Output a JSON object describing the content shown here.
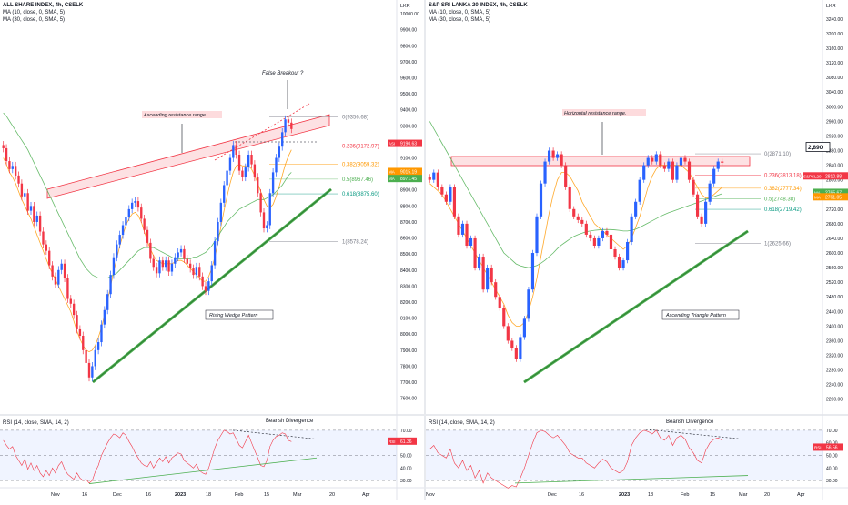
{
  "header": {
    "corner_label": "LKR",
    "corner_label_left": "LKR",
    "corner_label_right": "LKR"
  },
  "chart_data": [
    {
      "type": "candlestick",
      "title": "ALL SHARE INDEX, 4h, CSELK",
      "indicators": [
        "MA (10, close, 0, SMA, 5)",
        "MA (30, close, 0, SMA, 5)"
      ],
      "y_axis": {
        "ticks": [
          10000,
          9900,
          9800,
          9700,
          9600,
          9500,
          9400,
          9300,
          9200,
          9100,
          9000,
          8900,
          8800,
          8700,
          8600,
          8500,
          8400,
          8300,
          8200,
          8100,
          8000,
          7900,
          7800,
          7700,
          7600
        ],
        "tick_labels": [
          "10000.00",
          "9900.00",
          "9800.00",
          "9700.00",
          "9600.00",
          "9500.00",
          "9400.00",
          "9300.00",
          "9200.00",
          "9100.00",
          "9000.00",
          "8900.00",
          "8800.00",
          "8700.00",
          "8600.00",
          "8500.00",
          "8400.00",
          "8300.00",
          "8200.00",
          "8100.00",
          "8000.00",
          "7900.00",
          "7800.00",
          "7700.00",
          "7600.00"
        ],
        "range": [
          7530,
          10040
        ]
      },
      "x_axis": {
        "tick_labels": [
          "Nov",
          "16",
          "Dec",
          "16",
          "2023",
          "18",
          "Feb",
          "15",
          "Mar",
          "20",
          "Apr"
        ]
      },
      "series": [
        {
          "name": "ALL SHARE INDEX",
          "close": [
            9160,
            9080,
            9030,
            9050,
            8990,
            8940,
            8860,
            8880,
            8770,
            8800,
            8700,
            8740,
            8640,
            8560,
            8520,
            8430,
            8360,
            8310,
            8400,
            8440,
            8350,
            8220,
            8190,
            8120,
            8030,
            7990,
            7900,
            7820,
            7730,
            7800,
            7900,
            7950,
            8060,
            8150,
            8250,
            8370,
            8480,
            8560,
            8620,
            8680,
            8730,
            8780,
            8820,
            8830,
            8790,
            8720,
            8650,
            8570,
            8470,
            8420,
            8380,
            8460,
            8420,
            8460,
            8390,
            8440,
            8480,
            8510,
            8530,
            8470,
            8440,
            8410,
            8370,
            8420,
            8360,
            8300,
            8270,
            8330,
            8430,
            8580,
            8700,
            8820,
            8930,
            9020,
            9100,
            9180,
            9120,
            9020,
            8980,
            9040,
            9120,
            9060,
            8980,
            8880,
            8760,
            8660,
            8680,
            8880,
            9010,
            9100,
            9170,
            9260,
            9340,
            9320,
            9280
          ]
        },
        {
          "name": "MA (10)",
          "values": [
            9100,
            9060,
            9010,
            8980,
            8940,
            8890,
            8840,
            8800,
            8760,
            8720,
            8670,
            8620,
            8570,
            8520,
            8470,
            8420,
            8380,
            8340,
            8300,
            8260,
            8220,
            8180,
            8140,
            8080,
            8020,
            7970,
            7930,
            7900,
            7890,
            7900,
            7930,
            7980,
            8040,
            8120,
            8210,
            8300,
            8390,
            8470,
            8550,
            8620,
            8680,
            8720,
            8750,
            8760,
            8740,
            8700,
            8640,
            8580,
            8530,
            8490,
            8460,
            8450,
            8440,
            8440,
            8440,
            8440,
            8450,
            8460,
            8460,
            8450,
            8430,
            8410,
            8390,
            8370,
            8350,
            8330,
            8330,
            8360,
            8410,
            8480,
            8570,
            8670,
            8770,
            8860,
            8940,
            9010,
            9050,
            9060,
            9050,
            9050,
            9050,
            9030,
            8990,
            8940,
            8890,
            8840,
            8800,
            8790,
            8810,
            8860,
            8920,
            8990,
            9060,
            9110,
            9150
          ]
        },
        {
          "name": "MA (30)",
          "values": [
            9380,
            9360,
            9330,
            9300,
            9270,
            9240,
            9210,
            9180,
            9150,
            9110,
            9070,
            9030,
            8990,
            8950,
            8910,
            8870,
            8830,
            8790,
            8750,
            8710,
            8670,
            8630,
            8590,
            8550,
            8510,
            8470,
            8440,
            8410,
            8390,
            8370,
            8360,
            8350,
            8350,
            8350,
            8350,
            8360,
            8370,
            8380,
            8400,
            8420,
            8440,
            8460,
            8480,
            8500,
            8520,
            8530,
            8540,
            8540,
            8540,
            8540,
            8530,
            8520,
            8510,
            8500,
            8490,
            8480,
            8470,
            8470,
            8470,
            8470,
            8470,
            8470,
            8480,
            8480,
            8490,
            8500,
            8510,
            8530,
            8550,
            8580,
            8610,
            8640,
            8670,
            8700,
            8720,
            8740,
            8760,
            8780,
            8790,
            8800,
            8810,
            8820,
            8830,
            8840,
            8840,
            8840,
            8850,
            8860,
            8870,
            8890,
            8910,
            8930,
            8960,
            8990,
            9010
          ]
        }
      ],
      "fibonacci": [
        {
          "level": "0",
          "value": 9356.68,
          "label": "0(9356.68)"
        },
        {
          "level": "0.236",
          "value": 9172.97,
          "label": "0.236(9172.97)"
        },
        {
          "level": "0.382",
          "value": 9059.32,
          "label": "0.382(9059.32)"
        },
        {
          "level": "0.5",
          "value": 8967.46,
          "label": "0.5(8967.46)"
        },
        {
          "level": "0.618",
          "value": 8875.6,
          "label": "0.618(8875.60)"
        },
        {
          "level": "1",
          "value": 8578.24,
          "label": "1(8578.24)"
        }
      ],
      "price_tags": [
        {
          "tag": "ASI",
          "value": "9190.63",
          "color": "#f23645"
        },
        {
          "tag": "MA",
          "value": "9015.19",
          "color": "#ff9800"
        },
        {
          "tag": "MA",
          "value": "8971.45",
          "color": "#4caf50"
        }
      ],
      "annotations": [
        "Ascending resistance range.",
        "False Breakout ?",
        "Rising Wedge Pattern"
      ],
      "rsi": {
        "title": "RSI (14, close, SMA, 14, 2)",
        "ticks": [
          "70.00",
          "60.00",
          "50.00",
          "40.00",
          "30.00"
        ],
        "last": "61.36",
        "annotation": "Bearish Divergence",
        "values": [
          62,
          58,
          55,
          57,
          50,
          46,
          42,
          47,
          39,
          44,
          38,
          42,
          36,
          33,
          38,
          34,
          40,
          36,
          42,
          45,
          39,
          35,
          33,
          31,
          36,
          32,
          30,
          31,
          28,
          30,
          37,
          42,
          50,
          55,
          60,
          64,
          67,
          66,
          64,
          68,
          66,
          61,
          57,
          52,
          48,
          44,
          42,
          41,
          45,
          40,
          44,
          48,
          45,
          49,
          44,
          48,
          50,
          52,
          51,
          46,
          44,
          42,
          40,
          43,
          38,
          36,
          35,
          40,
          48,
          56,
          62,
          66,
          70,
          69,
          67,
          68,
          63,
          58,
          56,
          61,
          66,
          60,
          54,
          48,
          42,
          41,
          46,
          57,
          62,
          65,
          66,
          68,
          67,
          62,
          61
        ]
      }
    },
    {
      "type": "candlestick",
      "title": "S&P SRI LANKA 20 INDEX, 4h, CSELK",
      "indicators": [
        "MA (10, close, 0, SMA, 5)",
        "MA (30, close, 0, SMA, 5)"
      ],
      "y_axis": {
        "ticks": [
          3240,
          3200,
          3160,
          3120,
          3080,
          3040,
          3000,
          2960,
          2920,
          2880,
          2840,
          2800,
          2760,
          2720,
          2680,
          2640,
          2600,
          2560,
          2520,
          2480,
          2440,
          2400,
          2360,
          2320,
          2280,
          2240,
          2200
        ],
        "tick_labels": [
          "3240.00",
          "3200.00",
          "3160.00",
          "3120.00",
          "3080.00",
          "3040.00",
          "3000.00",
          "2960.00",
          "2920.00",
          "2880.00",
          "2840.00",
          "2800.00",
          "2760.00",
          "2720.00",
          "2680.00",
          "2640.00",
          "2600.00",
          "2560.00",
          "2520.00",
          "2480.00",
          "2440.00",
          "2400.00",
          "2360.00",
          "2320.00",
          "2280.00",
          "2240.00",
          "2200.00"
        ],
        "range": [
          2172,
          3272
        ]
      },
      "x_axis": {
        "tick_labels": [
          "Nov",
          "Dec",
          "16",
          "2023",
          "18",
          "Feb",
          "15",
          "Mar",
          "20",
          "Apr"
        ]
      },
      "series": [
        {
          "name": "S&P SRI LANKA 20 INDEX",
          "close": [
            2800,
            2820,
            2780,
            2760,
            2740,
            2780,
            2700,
            2650,
            2680,
            2620,
            2640,
            2560,
            2590,
            2500,
            2560,
            2520,
            2480,
            2450,
            2400,
            2360,
            2340,
            2310,
            2370,
            2420,
            2500,
            2600,
            2700,
            2790,
            2850,
            2880,
            2860,
            2870,
            2840,
            2780,
            2720,
            2700,
            2690,
            2680,
            2650,
            2640,
            2620,
            2640,
            2660,
            2650,
            2610,
            2590,
            2560,
            2580,
            2630,
            2700,
            2740,
            2800,
            2840,
            2860,
            2850,
            2870,
            2840,
            2830,
            2850,
            2800,
            2840,
            2860,
            2850,
            2800,
            2760,
            2700,
            2680,
            2740,
            2790,
            2830,
            2850,
            2847
          ]
        },
        {
          "name": "MA (10)",
          "values": [
            2790,
            2780,
            2770,
            2760,
            2740,
            2720,
            2700,
            2680,
            2660,
            2640,
            2620,
            2600,
            2580,
            2560,
            2540,
            2520,
            2500,
            2480,
            2460,
            2430,
            2410,
            2400,
            2400,
            2410,
            2440,
            2480,
            2530,
            2590,
            2650,
            2710,
            2760,
            2800,
            2820,
            2820,
            2810,
            2790,
            2770,
            2740,
            2720,
            2700,
            2680,
            2670,
            2660,
            2650,
            2640,
            2630,
            2620,
            2610,
            2620,
            2640,
            2670,
            2700,
            2740,
            2780,
            2810,
            2830,
            2840,
            2840,
            2840,
            2840,
            2840,
            2840,
            2830,
            2820,
            2800,
            2780,
            2760,
            2750,
            2750,
            2760,
            2770,
            2780
          ]
        },
        {
          "name": "MA (30)",
          "values": [
            2960,
            2940,
            2920,
            2900,
            2880,
            2860,
            2840,
            2820,
            2800,
            2780,
            2760,
            2740,
            2720,
            2700,
            2680,
            2660,
            2640,
            2620,
            2600,
            2590,
            2580,
            2570,
            2565,
            2562,
            2560,
            2562,
            2566,
            2572,
            2580,
            2590,
            2600,
            2612,
            2622,
            2630,
            2638,
            2645,
            2650,
            2654,
            2658,
            2660,
            2662,
            2663,
            2664,
            2664,
            2664,
            2663,
            2662,
            2660,
            2660,
            2662,
            2665,
            2670,
            2676,
            2682,
            2688,
            2694,
            2700,
            2705,
            2710,
            2714,
            2718,
            2722,
            2726,
            2730,
            2734,
            2738,
            2742,
            2746,
            2750,
            2754,
            2758,
            2762
          ]
        }
      ],
      "fibonacci": [
        {
          "level": "0",
          "value": 2871.1,
          "label": "0(2871.10)"
        },
        {
          "level": "0.236",
          "value": 2813.18,
          "label": "0.236(2813.18)"
        },
        {
          "level": "0.382",
          "value": 2777.34,
          "label": "0.382(2777.34)"
        },
        {
          "level": "0.5",
          "value": 2748.38,
          "label": "0.5(2748.38)"
        },
        {
          "level": "0.618",
          "value": 2719.42,
          "label": "0.618(2719.42)"
        },
        {
          "level": "1",
          "value": 2625.66,
          "label": "1(2625.66)"
        }
      ],
      "price_tags": [
        {
          "tag": "",
          "value": "2,890",
          "color": "#131722"
        },
        {
          "tag": "S&PSL20",
          "value": "2810.88",
          "color": "#f23645"
        },
        {
          "tag": "MA",
          "value": "2765.67",
          "color": "#4caf50"
        },
        {
          "tag": "MA",
          "value": "2761.05",
          "color": "#ff9800"
        }
      ],
      "annotations": [
        "Horizontal resistance range.",
        "Ascending Triangle Pattern"
      ],
      "rsi": {
        "title": "RSI (14, close, SMA, 14, 2)",
        "ticks": [
          "70.00",
          "60.00",
          "50.00",
          "40.00",
          "30.00"
        ],
        "last": "56.56",
        "annotation": "Bearish Divergence",
        "values": [
          55,
          58,
          52,
          50,
          48,
          55,
          44,
          40,
          46,
          38,
          42,
          32,
          38,
          28,
          36,
          32,
          30,
          28,
          26,
          24,
          26,
          25,
          32,
          40,
          50,
          60,
          68,
          70,
          69,
          66,
          64,
          66,
          62,
          58,
          52,
          50,
          48,
          48,
          44,
          42,
          40,
          44,
          47,
          45,
          40,
          38,
          36,
          38,
          45,
          58,
          64,
          68,
          70,
          69,
          67,
          70,
          64,
          62,
          66,
          58,
          64,
          66,
          63,
          56,
          52,
          46,
          44,
          54,
          60,
          63,
          64,
          62
        ]
      }
    }
  ]
}
